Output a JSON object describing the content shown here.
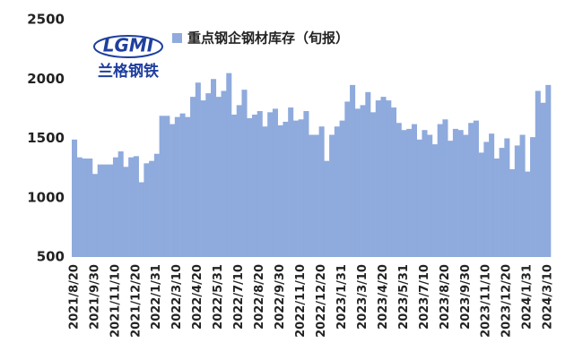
{
  "logo": {
    "text": "LGMI",
    "caption": "兰格钢铁"
  },
  "chart_data": {
    "type": "bar",
    "categories": [
      "2021/8/20",
      null,
      null,
      null,
      "2021/9/30",
      null,
      null,
      null,
      "2021/11/10",
      null,
      null,
      null,
      "2021/12/20",
      null,
      null,
      null,
      "2022/1/31",
      null,
      null,
      null,
      "2022/3/10",
      null,
      null,
      null,
      "2022/4/20",
      null,
      null,
      null,
      "2022/5/31",
      null,
      null,
      null,
      "2022/7/10",
      null,
      null,
      null,
      "2022/8/20",
      null,
      null,
      null,
      "2022/9/30",
      null,
      null,
      null,
      "2022/11/10",
      null,
      null,
      null,
      "2022/12/20",
      null,
      null,
      null,
      "2023/1/31",
      null,
      null,
      null,
      "2023/3/10",
      null,
      null,
      null,
      "2023/4/20",
      null,
      null,
      null,
      "2023/5/31",
      null,
      null,
      null,
      "2023/7/10",
      null,
      null,
      null,
      "2023/8/20",
      null,
      null,
      null,
      "2023/9/30",
      null,
      null,
      null,
      "2023/11/10",
      null,
      null,
      null,
      "2023/12/20",
      null,
      null,
      null,
      "2024/1/31",
      null,
      null,
      null,
      "2024/3/10"
    ],
    "series": [
      {
        "name": "重点钢企钢材库存（旬报）",
        "color": "#8faadc",
        "values": [
          1490,
          1340,
          1330,
          1330,
          1200,
          1280,
          1280,
          1280,
          1340,
          1390,
          1260,
          1340,
          1350,
          1130,
          1290,
          1310,
          1370,
          1690,
          1690,
          1620,
          1680,
          1710,
          1680,
          1850,
          1970,
          1820,
          1880,
          2000,
          1850,
          1900,
          2050,
          1700,
          1780,
          1910,
          1670,
          1700,
          1730,
          1600,
          1720,
          1750,
          1610,
          1640,
          1760,
          1650,
          1660,
          1730,
          1530,
          1530,
          1600,
          1310,
          1530,
          1600,
          1650,
          1810,
          1950,
          1750,
          1780,
          1890,
          1720,
          1820,
          1850,
          1820,
          1760,
          1630,
          1570,
          1580,
          1620,
          1490,
          1570,
          1530,
          1450,
          1620,
          1660,
          1480,
          1580,
          1570,
          1530,
          1630,
          1650,
          1380,
          1470,
          1540,
          1330,
          1420,
          1500,
          1240,
          1440,
          1530,
          1220,
          1510,
          1900,
          1800,
          1950
        ]
      }
    ],
    "ylim": [
      500,
      2500
    ],
    "yticks": [
      500,
      1000,
      1500,
      2000,
      2500
    ],
    "grid": false
  }
}
